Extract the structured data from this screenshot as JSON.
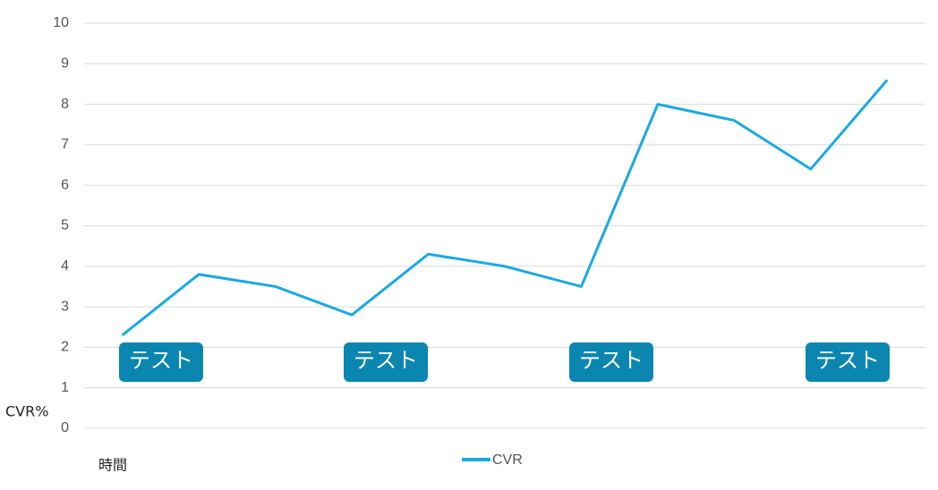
{
  "chart_data": {
    "type": "line",
    "y_label": "CVR%",
    "x_label": "時間",
    "categories": [
      null,
      null,
      null,
      null,
      null,
      null,
      null,
      null,
      null,
      null,
      null
    ],
    "series": [
      {
        "name": "CVR",
        "color": "#1aa9e2",
        "values": [
          2.3,
          3.8,
          3.5,
          2.8,
          4.3,
          4.0,
          3.5,
          8.0,
          7.6,
          6.4,
          8.6
        ]
      }
    ],
    "ylim": [
      0,
      10
    ],
    "yticks": [
      0,
      1,
      2,
      3,
      4,
      5,
      6,
      7,
      8,
      9,
      10
    ],
    "grid": true,
    "annotations": [
      "テスト",
      "テスト",
      "テスト",
      "テスト"
    ],
    "annotation_color": "#0b86b0"
  }
}
